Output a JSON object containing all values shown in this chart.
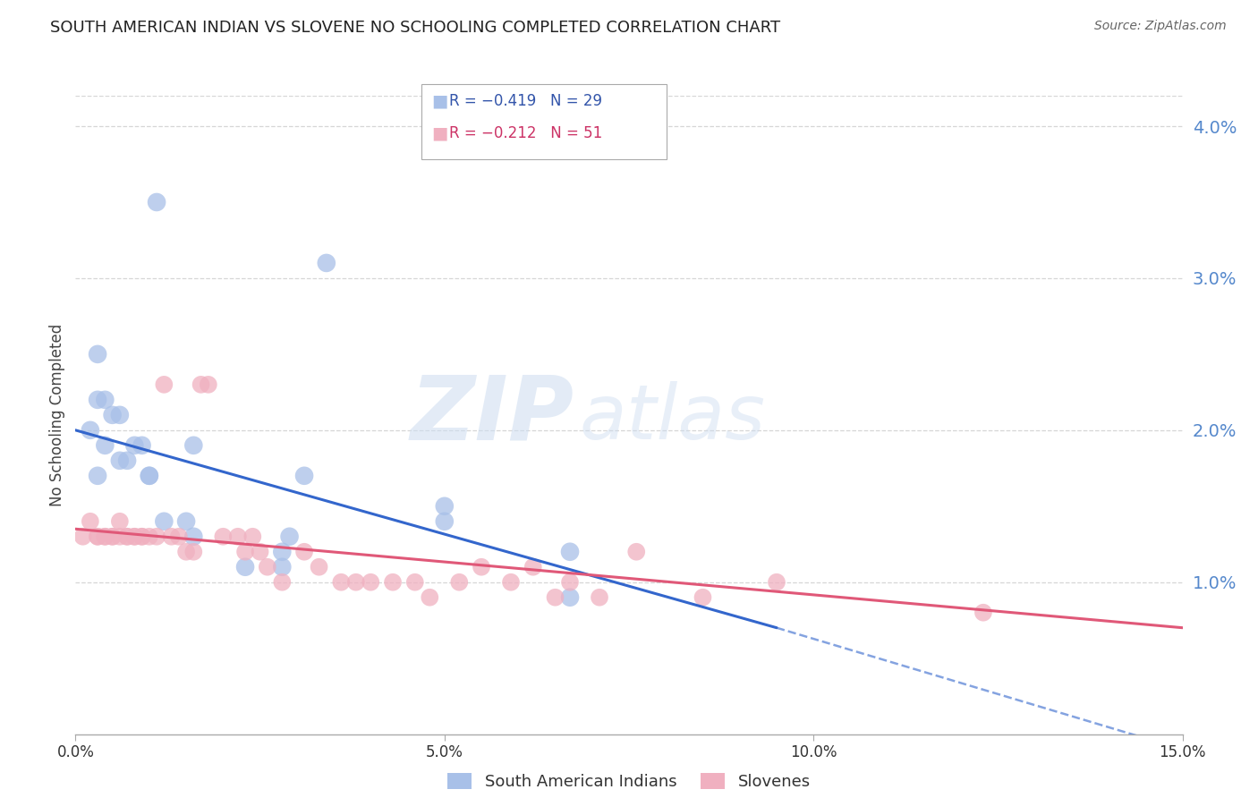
{
  "title": "SOUTH AMERICAN INDIAN VS SLOVENE NO SCHOOLING COMPLETED CORRELATION CHART",
  "source": "Source: ZipAtlas.com",
  "ylabel": "No Schooling Completed",
  "xlim": [
    0.0,
    0.15
  ],
  "ylim": [
    0.0,
    0.042
  ],
  "xticks": [
    0.0,
    0.05,
    0.1,
    0.15
  ],
  "xtick_labels": [
    "0.0%",
    "5.0%",
    "10.0%",
    "15.0%"
  ],
  "ytick_vals": [
    0.01,
    0.02,
    0.03,
    0.04
  ],
  "ytick_labels": [
    "1.0%",
    "2.0%",
    "3.0%",
    "4.0%"
  ],
  "blue_label": "South American Indians",
  "pink_label": "Slovenes",
  "blue_R": "R = −0.419",
  "blue_N": "N = 29",
  "pink_R": "R = −0.212",
  "pink_N": "N = 51",
  "blue_color": "#a8c0e8",
  "pink_color": "#f0b0c0",
  "blue_line_color": "#3366cc",
  "pink_line_color": "#e05878",
  "watermark_zip": "ZIP",
  "watermark_atlas": "atlas",
  "background_color": "#ffffff",
  "grid_color": "#cccccc",
  "title_color": "#222222",
  "axis_label_color": "#444444",
  "right_tick_color": "#5588cc",
  "blue_scatter_x": [
    0.003,
    0.011,
    0.003,
    0.002,
    0.004,
    0.005,
    0.006,
    0.004,
    0.008,
    0.006,
    0.007,
    0.009,
    0.003,
    0.01,
    0.01,
    0.012,
    0.015,
    0.016,
    0.016,
    0.023,
    0.028,
    0.028,
    0.029,
    0.031,
    0.034,
    0.05,
    0.05,
    0.067,
    0.067
  ],
  "blue_scatter_y": [
    0.025,
    0.035,
    0.022,
    0.02,
    0.022,
    0.021,
    0.021,
    0.019,
    0.019,
    0.018,
    0.018,
    0.019,
    0.017,
    0.017,
    0.017,
    0.014,
    0.014,
    0.019,
    0.013,
    0.011,
    0.011,
    0.012,
    0.013,
    0.017,
    0.031,
    0.014,
    0.015,
    0.012,
    0.009
  ],
  "pink_scatter_x": [
    0.001,
    0.002,
    0.003,
    0.003,
    0.004,
    0.004,
    0.005,
    0.005,
    0.006,
    0.006,
    0.007,
    0.007,
    0.008,
    0.008,
    0.009,
    0.009,
    0.01,
    0.011,
    0.012,
    0.013,
    0.014,
    0.015,
    0.016,
    0.017,
    0.018,
    0.02,
    0.022,
    0.023,
    0.024,
    0.025,
    0.026,
    0.028,
    0.031,
    0.033,
    0.036,
    0.038,
    0.04,
    0.043,
    0.046,
    0.048,
    0.052,
    0.055,
    0.059,
    0.062,
    0.065,
    0.067,
    0.071,
    0.076,
    0.085,
    0.095,
    0.123
  ],
  "pink_scatter_y": [
    0.013,
    0.014,
    0.013,
    0.013,
    0.013,
    0.013,
    0.013,
    0.013,
    0.014,
    0.013,
    0.013,
    0.013,
    0.013,
    0.013,
    0.013,
    0.013,
    0.013,
    0.013,
    0.023,
    0.013,
    0.013,
    0.012,
    0.012,
    0.023,
    0.023,
    0.013,
    0.013,
    0.012,
    0.013,
    0.012,
    0.011,
    0.01,
    0.012,
    0.011,
    0.01,
    0.01,
    0.01,
    0.01,
    0.01,
    0.009,
    0.01,
    0.011,
    0.01,
    0.011,
    0.009,
    0.01,
    0.009,
    0.012,
    0.009,
    0.01,
    0.008
  ],
  "blue_trend": [
    0.0,
    0.095,
    0.02,
    0.007
  ],
  "blue_dash": [
    0.095,
    0.15,
    0.007,
    -0.001
  ],
  "pink_trend": [
    0.0,
    0.15,
    0.0135,
    0.007
  ]
}
